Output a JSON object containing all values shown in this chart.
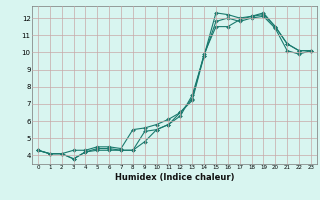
{
  "xlabel": "Humidex (Indice chaleur)",
  "ylabel": "",
  "bg_color": "#d8f5f0",
  "grid_color": "#c8a8a8",
  "line_color": "#1a7a6e",
  "xlim": [
    -0.5,
    23.5
  ],
  "ylim": [
    3.5,
    12.7
  ],
  "xticks": [
    0,
    1,
    2,
    3,
    4,
    5,
    6,
    7,
    8,
    9,
    10,
    11,
    12,
    13,
    14,
    15,
    16,
    17,
    18,
    19,
    20,
    21,
    22,
    23
  ],
  "yticks": [
    4,
    5,
    6,
    7,
    8,
    9,
    10,
    11,
    12
  ],
  "line1_x": [
    0,
    1,
    2,
    3,
    4,
    5,
    6,
    7,
    8,
    9,
    10,
    11,
    12,
    13,
    14,
    15,
    16,
    17,
    18,
    19,
    20,
    21,
    22,
    23
  ],
  "line1_y": [
    4.3,
    4.1,
    4.1,
    3.8,
    4.2,
    4.4,
    4.4,
    4.3,
    4.3,
    4.8,
    5.5,
    5.8,
    6.3,
    7.5,
    9.8,
    12.3,
    12.2,
    12.0,
    12.1,
    12.3,
    11.5,
    10.5,
    10.1,
    10.1
  ],
  "line2_x": [
    0,
    1,
    2,
    3,
    4,
    5,
    6,
    7,
    8,
    9,
    10,
    11,
    12,
    13,
    14,
    15,
    16,
    17,
    18,
    19,
    20,
    21,
    22,
    23
  ],
  "line2_y": [
    4.3,
    4.1,
    4.1,
    4.3,
    4.3,
    4.5,
    4.5,
    4.4,
    5.5,
    5.6,
    5.8,
    6.1,
    6.5,
    7.3,
    9.9,
    11.5,
    11.5,
    11.9,
    12.1,
    12.2,
    11.5,
    10.5,
    10.1,
    10.1
  ],
  "line3_x": [
    0,
    1,
    2,
    3,
    4,
    5,
    6,
    7,
    8,
    9,
    10,
    11,
    12,
    13,
    14,
    15,
    16,
    17,
    18,
    19,
    20,
    21,
    22,
    23
  ],
  "line3_y": [
    4.3,
    4.1,
    4.1,
    3.8,
    4.2,
    4.3,
    4.3,
    4.3,
    4.3,
    5.4,
    5.5,
    5.8,
    6.5,
    7.2,
    9.8,
    11.8,
    12.0,
    11.8,
    12.0,
    12.1,
    11.4,
    10.1,
    9.9,
    10.1
  ],
  "xlabel_fontsize": 6,
  "tick_fontsize_x": 4,
  "tick_fontsize_y": 5
}
